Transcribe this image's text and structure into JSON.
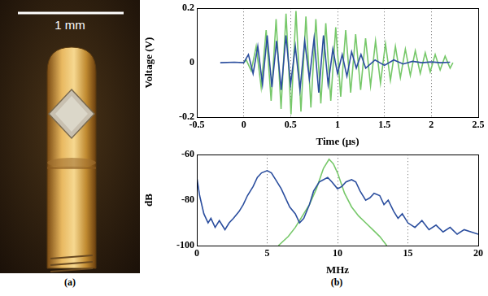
{
  "photo": {
    "scale_bar": "1 mm",
    "label": "(a)"
  },
  "panel_b_label": "(b)",
  "chart_data": [
    {
      "type": "line",
      "x_label": "Time (μs)",
      "y_label": "Voltage (V)",
      "xlim": [
        -0.5,
        2.5
      ],
      "xticks": [
        -0.5,
        0,
        0.5,
        1,
        1.5,
        2,
        2.5
      ],
      "ylim": [
        -0.2,
        0.2
      ],
      "yticks": [
        -0.2,
        0,
        0.2
      ],
      "grid": "x",
      "series": [
        {
          "color": "#2b4e9e",
          "x": [
            -0.25,
            -0.1,
            0,
            0.05,
            0.1,
            0.15,
            0.2,
            0.25,
            0.3,
            0.35,
            0.4,
            0.45,
            0.5,
            0.55,
            0.6,
            0.65,
            0.7,
            0.75,
            0.8,
            0.85,
            0.9,
            0.95,
            1.0,
            1.05,
            1.1,
            1.15,
            1.2,
            1.25,
            1.3,
            1.4,
            1.5,
            1.6,
            1.7,
            1.8,
            1.9,
            2.0,
            2.1,
            2.2
          ],
          "values": [
            0,
            0.002,
            0,
            0.03,
            -0.04,
            0.06,
            -0.08,
            0.1,
            -0.09,
            0.08,
            -0.1,
            0.1,
            -0.08,
            0.06,
            -0.1,
            0.08,
            -0.06,
            0.09,
            -0.11,
            0.1,
            -0.08,
            0.05,
            -0.04,
            0.03,
            -0.05,
            0.04,
            -0.02,
            0.03,
            -0.02,
            0.01,
            -0.01,
            0.01,
            -0.005,
            0.005,
            0,
            0.003,
            0,
            0.002
          ]
        },
        {
          "color": "#77c86a",
          "x": [
            0,
            0.027,
            0.08,
            0.133,
            0.186,
            0.239,
            0.292,
            0.345,
            0.398,
            0.451,
            0.504,
            0.557,
            0.61,
            0.663,
            0.716,
            0.769,
            0.822,
            0.875,
            0.928,
            0.981,
            1.034,
            1.087,
            1.14,
            1.193,
            1.246,
            1.299,
            1.352,
            1.405,
            1.458,
            1.511,
            1.564,
            1.617,
            1.67,
            1.723,
            1.776,
            1.829,
            1.882,
            1.935,
            1.988,
            2.041,
            2.094,
            2.147,
            2.2,
            2.23
          ],
          "values": [
            0,
            0.01,
            -0.03,
            0.06,
            -0.09,
            0.12,
            -0.14,
            0.16,
            -0.17,
            0.18,
            -0.19,
            0.19,
            -0.18,
            0.17,
            -0.165,
            0.16,
            -0.15,
            0.145,
            -0.14,
            0.13,
            -0.125,
            0.12,
            -0.11,
            0.105,
            -0.1,
            0.09,
            -0.085,
            0.08,
            -0.075,
            0.07,
            -0.065,
            0.06,
            -0.055,
            0.05,
            -0.047,
            0.044,
            -0.04,
            0.037,
            -0.034,
            0.03,
            -0.027,
            0.024,
            -0.02,
            0
          ]
        }
      ]
    },
    {
      "type": "line",
      "x_label": "MHz",
      "y_label": "dB",
      "xlim": [
        0,
        20
      ],
      "xticks": [
        0,
        5,
        10,
        15,
        20
      ],
      "ylim": [
        -100,
        -60
      ],
      "yticks": [
        -100,
        -80,
        -60
      ],
      "grid": "x",
      "series": [
        {
          "color": "#2b4e9e",
          "x": [
            0,
            0.2,
            0.5,
            0.8,
            1.0,
            1.3,
            1.6,
            2.0,
            2.3,
            2.6,
            3.0,
            3.3,
            3.6,
            4.0,
            4.3,
            4.6,
            5.0,
            5.3,
            5.6,
            6.0,
            6.3,
            6.6,
            7.0,
            7.3,
            7.6,
            8.0,
            8.3,
            8.7,
            9.0,
            9.3,
            9.6,
            10.0,
            10.3,
            10.6,
            11.0,
            11.3,
            11.6,
            12.0,
            12.3,
            12.6,
            13.0,
            13.3,
            13.6,
            14.0,
            14.3,
            14.6,
            15.0,
            15.5,
            16.0,
            16.5,
            17.0,
            17.5,
            18.0,
            18.5,
            19.0,
            19.5,
            20.0
          ],
          "values": [
            -70,
            -78,
            -86,
            -90,
            -88,
            -92,
            -89,
            -93,
            -90,
            -88,
            -85,
            -82,
            -78,
            -74,
            -70,
            -68,
            -67,
            -68,
            -71,
            -75,
            -79,
            -83,
            -86,
            -90,
            -88,
            -82,
            -76,
            -72,
            -71,
            -70,
            -72,
            -75,
            -74,
            -72,
            -71,
            -72,
            -76,
            -80,
            -79,
            -77,
            -78,
            -82,
            -80,
            -85,
            -88,
            -86,
            -90,
            -92,
            -89,
            -93,
            -91,
            -94,
            -92,
            -95,
            -93,
            -94,
            -95
          ]
        },
        {
          "color": "#77c86a",
          "x": [
            5.8,
            6.5,
            7.0,
            7.5,
            8.0,
            8.5,
            9.0,
            9.4,
            9.7,
            10.0,
            10.5,
            11.0,
            11.5,
            12.0,
            12.5,
            13.0,
            13.5
          ],
          "values": [
            -100,
            -96,
            -92,
            -87,
            -82,
            -75,
            -66,
            -62,
            -64,
            -68,
            -77,
            -83,
            -87,
            -90,
            -93,
            -96,
            -100
          ]
        }
      ]
    }
  ]
}
